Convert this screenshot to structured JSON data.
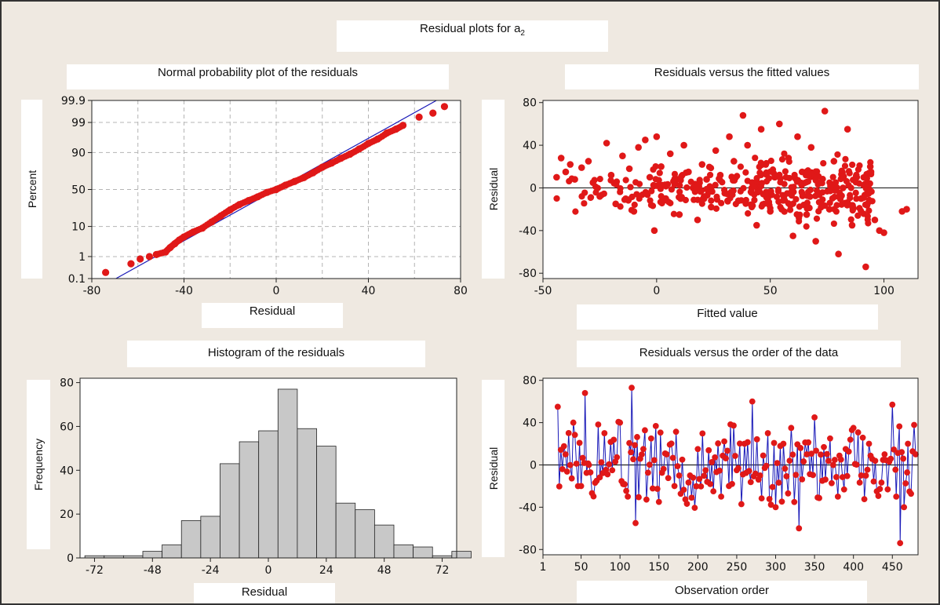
{
  "page": {
    "title": "Residual plots for a",
    "title_subscript": "2"
  },
  "colors": {
    "background": "#efe9e1",
    "point": "#e01818",
    "line": "#1a1ab8",
    "bar": "#c8c8c8",
    "grid": "#b4b4b4"
  },
  "chart_data": [
    {
      "id": "normal",
      "type": "scatter",
      "title": "Normal probability plot of the residuals",
      "xlabel": "Residual",
      "ylabel": "Percent",
      "xlim": [
        -80,
        80
      ],
      "xticks": [
        -80,
        -40,
        0,
        40,
        80
      ],
      "yscale": "normal-probability",
      "ylim_percent": [
        0.1,
        99.9
      ],
      "yticks": [
        "0.1",
        "1",
        "10",
        "50",
        "90",
        "99",
        "99.9"
      ],
      "grid": true,
      "fit_line": {
        "mean": 0,
        "sd": 22.5
      },
      "points": [
        [
          -74,
          0.2
        ],
        [
          -63,
          0.5
        ],
        [
          -59,
          0.8
        ],
        [
          -55,
          1.0
        ],
        [
          -52,
          1.2
        ],
        [
          -48,
          1.5
        ],
        [
          -46,
          2.2
        ],
        [
          -44,
          3
        ],
        [
          -42,
          4
        ],
        [
          -40,
          5
        ],
        [
          -36,
          7
        ],
        [
          -32,
          9
        ],
        [
          -28,
          13
        ],
        [
          -24,
          18
        ],
        [
          -20,
          24
        ],
        [
          -16,
          30
        ],
        [
          -12,
          35
        ],
        [
          -8,
          40
        ],
        [
          -4,
          46
        ],
        [
          0,
          50
        ],
        [
          4,
          56
        ],
        [
          8,
          61
        ],
        [
          12,
          66
        ],
        [
          16,
          72
        ],
        [
          20,
          78
        ],
        [
          24,
          82
        ],
        [
          28,
          86
        ],
        [
          32,
          89
        ],
        [
          36,
          92
        ],
        [
          40,
          94.5
        ],
        [
          44,
          96
        ],
        [
          48,
          97.5
        ],
        [
          52,
          98.2
        ],
        [
          55,
          98.7
        ],
        [
          62,
          99.4
        ],
        [
          68,
          99.6
        ],
        [
          73,
          99.8
        ]
      ]
    },
    {
      "id": "fitted",
      "type": "scatter",
      "title": "Residuals versus the fitted values",
      "xlabel": "Fitted value",
      "ylabel": "Residual",
      "xlim": [
        -50,
        115
      ],
      "ylim": [
        -85,
        82
      ],
      "xticks": [
        -50,
        0,
        50,
        100
      ],
      "yticks": [
        -80,
        -40,
        0,
        40,
        80
      ],
      "reference_line": 0,
      "points": [
        [
          -44,
          10
        ],
        [
          -42,
          28
        ],
        [
          -40,
          15
        ],
        [
          -38,
          22
        ],
        [
          -36,
          8
        ],
        [
          -33,
          19
        ],
        [
          -30,
          25
        ],
        [
          -28,
          5
        ],
        [
          -25,
          -8
        ],
        [
          -22,
          42
        ],
        [
          -20,
          12
        ],
        [
          -18,
          -15
        ],
        [
          -15,
          30
        ],
        [
          -12,
          18
        ],
        [
          -10,
          -22
        ],
        [
          -8,
          38
        ],
        [
          -5,
          45
        ],
        [
          -3,
          10
        ],
        [
          -1,
          -40
        ],
        [
          0,
          48
        ],
        [
          2,
          20
        ],
        [
          4,
          -10
        ],
        [
          6,
          32
        ],
        [
          8,
          5
        ],
        [
          10,
          -25
        ],
        [
          12,
          40
        ],
        [
          14,
          15
        ],
        [
          16,
          0
        ],
        [
          18,
          -30
        ],
        [
          20,
          22
        ],
        [
          22,
          8
        ],
        [
          24,
          -18
        ],
        [
          26,
          35
        ],
        [
          28,
          12
        ],
        [
          30,
          -5
        ],
        [
          32,
          48
        ],
        [
          34,
          25
        ],
        [
          36,
          -12
        ],
        [
          38,
          68
        ],
        [
          40,
          40
        ],
        [
          42,
          5
        ],
        [
          44,
          -35
        ],
        [
          46,
          55
        ],
        [
          48,
          22
        ],
        [
          50,
          -22
        ],
        [
          52,
          10
        ],
        [
          54,
          60
        ],
        [
          56,
          -8
        ],
        [
          58,
          28
        ],
        [
          60,
          -45
        ],
        [
          62,
          48
        ],
        [
          64,
          15
        ],
        [
          66,
          -25
        ],
        [
          68,
          38
        ],
        [
          70,
          -50
        ],
        [
          72,
          5
        ],
        [
          74,
          72
        ],
        [
          76,
          -20
        ],
        [
          78,
          25
        ],
        [
          80,
          -62
        ],
        [
          82,
          0
        ],
        [
          84,
          55
        ],
        [
          86,
          -35
        ],
        [
          88,
          10
        ],
        [
          90,
          -10
        ],
        [
          92,
          -74
        ],
        [
          94,
          20
        ],
        [
          96,
          -30
        ],
        [
          98,
          -40
        ],
        [
          100,
          -42
        ],
        [
          108,
          -22
        ],
        [
          110,
          -20
        ]
      ]
    },
    {
      "id": "histogram",
      "type": "bar",
      "title": "Histogram of the residuals",
      "xlabel": "Residual",
      "ylabel": "Frequency",
      "bin_width": 8,
      "bin_start": -76,
      "values": [
        1,
        1,
        1,
        3,
        6,
        17,
        19,
        43,
        53,
        58,
        77,
        59,
        51,
        25,
        22,
        15,
        6,
        5,
        1,
        3
      ],
      "xlim": [
        -78,
        78
      ],
      "ylim": [
        0,
        82
      ],
      "xticks": [
        -72,
        -48,
        -24,
        0,
        24,
        48,
        72
      ],
      "yticks": [
        0,
        20,
        40,
        60,
        80
      ]
    },
    {
      "id": "order",
      "type": "line",
      "title": "Residuals versus the order of the data",
      "xlabel": "Observation order",
      "ylabel": "Residual",
      "xlim": [
        1,
        483
      ],
      "ylim": [
        -85,
        82
      ],
      "xticks": [
        1,
        50,
        100,
        150,
        200,
        250,
        300,
        350,
        400,
        450
      ],
      "yticks": [
        -80,
        -40,
        0,
        40,
        80
      ],
      "reference_line": 0,
      "x": [
        20,
        30,
        40,
        50,
        55,
        60,
        70,
        80,
        90,
        100,
        110,
        115,
        120,
        130,
        140,
        150,
        160,
        170,
        180,
        190,
        200,
        210,
        220,
        230,
        240,
        250,
        260,
        270,
        280,
        290,
        300,
        310,
        320,
        330,
        340,
        350,
        360,
        370,
        380,
        390,
        400,
        410,
        420,
        430,
        440,
        450,
        455,
        460,
        465,
        470,
        480
      ],
      "values": [
        55,
        10,
        40,
        -20,
        68,
        0,
        -15,
        30,
        -5,
        40,
        -30,
        73,
        -55,
        15,
        25,
        -35,
        10,
        -20,
        5,
        -10,
        15,
        -5,
        -25,
        -30,
        -20,
        -5,
        20,
        60,
        -10,
        30,
        -40,
        20,
        35,
        -60,
        10,
        45,
        -15,
        25,
        -30,
        15,
        35,
        -10,
        20,
        -25,
        10,
        57,
        -30,
        -74,
        -40,
        20,
        10
      ]
    }
  ]
}
